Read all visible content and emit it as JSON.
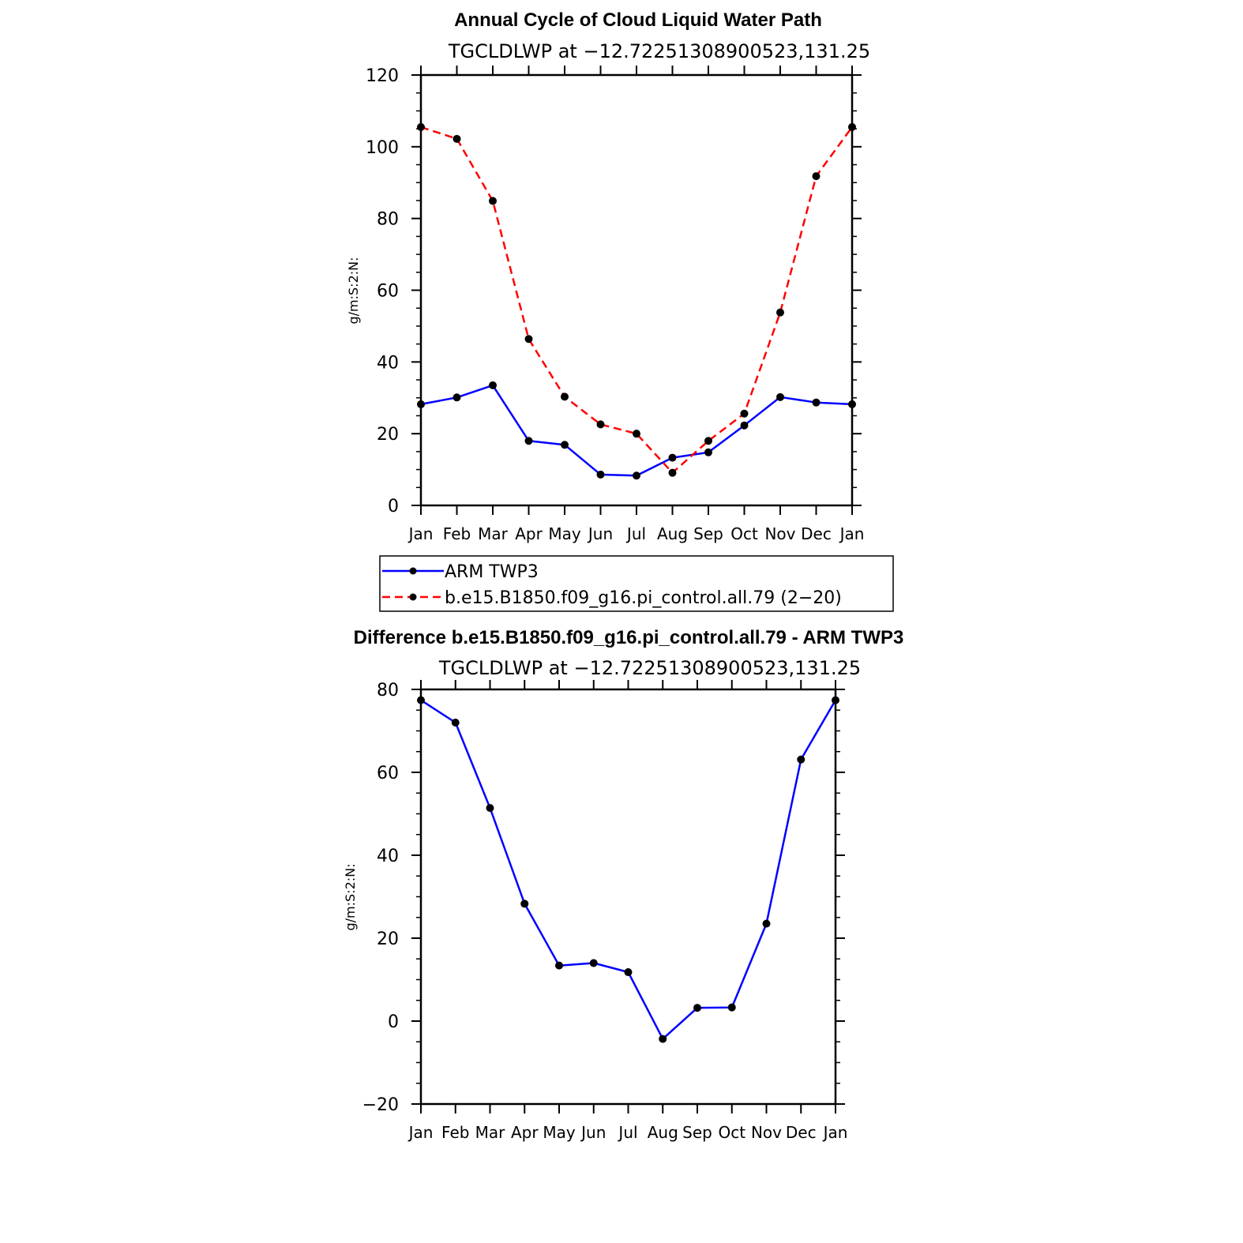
{
  "chart_data": [
    {
      "type": "line",
      "title": "Annual Cycle of Cloud Liquid Water Path",
      "subtitle": "TGCLDLWP at −12.72251308900523,131.25",
      "ylabel": "g/m:S:2:N:",
      "xlabel": "",
      "categories": [
        "Jan",
        "Feb",
        "Mar",
        "Apr",
        "May",
        "Jun",
        "Jul",
        "Aug",
        "Sep",
        "Oct",
        "Nov",
        "Dec",
        "Jan"
      ],
      "ylim": [
        0,
        120
      ],
      "yticks": [
        0,
        20,
        40,
        60,
        80,
        100,
        120
      ],
      "ytick_labels": [
        "0",
        "20",
        "40",
        "60",
        "80",
        "100",
        "120"
      ],
      "series": [
        {
          "name": "ARM TWP3",
          "color": "#0000ff",
          "dash": "solid",
          "values": [
            28.2,
            30.1,
            33.5,
            18.0,
            16.9,
            8.6,
            8.3,
            13.3,
            14.8,
            22.3,
            30.2,
            28.7,
            28.2
          ]
        },
        {
          "name": "b.e15.B1850.f09_g16.pi_control.all.79 (2−20)",
          "color": "#ff0000",
          "dash": "dashed",
          "values": [
            105.5,
            102.2,
            84.9,
            46.4,
            30.3,
            22.6,
            20.0,
            9.1,
            18.0,
            25.6,
            53.8,
            91.8,
            105.5
          ]
        }
      ],
      "legend": "below"
    },
    {
      "type": "line",
      "title": "Difference b.e15.B1850.f09_g16.pi_control.all.79 - ARM TWP3",
      "subtitle": "TGCLDLWP at −12.72251308900523,131.25",
      "ylabel": "g/m:S:2:N:",
      "xlabel": "",
      "categories": [
        "Jan",
        "Feb",
        "Mar",
        "Apr",
        "May",
        "Jun",
        "Jul",
        "Aug",
        "Sep",
        "Oct",
        "Nov",
        "Dec",
        "Jan"
      ],
      "ylim": [
        -20,
        80
      ],
      "yticks": [
        -20,
        0,
        20,
        40,
        60,
        80
      ],
      "ytick_labels": [
        "−20",
        "0",
        "20",
        "40",
        "60",
        "80"
      ],
      "series": [
        {
          "color": "#0000ff",
          "dash": "solid",
          "values": [
            77.4,
            72.0,
            51.4,
            28.3,
            13.4,
            14.0,
            11.8,
            -4.3,
            3.2,
            3.3,
            23.5,
            63.1,
            77.4
          ]
        }
      ]
    }
  ]
}
